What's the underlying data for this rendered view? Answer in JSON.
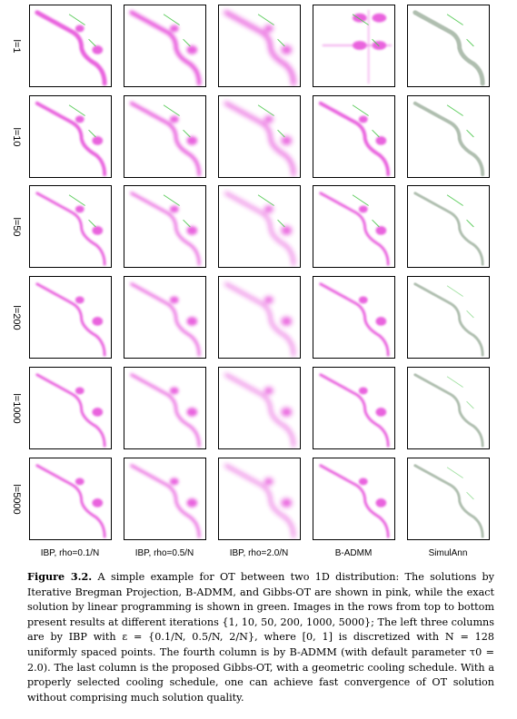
{
  "row_labels": [
    "l=1",
    "l=10",
    "l=50",
    "l=200",
    "l=1000",
    "l=5000"
  ],
  "column_labels": [
    "IBP, rho=0.1/N",
    "IBP, rho=0.5/N",
    "IBP, rho=2.0/N",
    "B-ADMM",
    "SimulAnn"
  ],
  "caption": {
    "figure_label": "Figure 3.2.",
    "text": "A simple example for OT between two 1D distribution: The solutions by Iterative Bregman Projection, B-ADMM, and Gibbs-OT are shown in pink, while the exact solution by linear programming is shown in green. Images in the rows from top to bottom present results at different iterations {1, 10, 50, 200, 1000, 5000}; The left three columns are by IBP with ε = {0.1/N, 0.5/N, 2/N}, where [0, 1] is discretized with N = 128 uniformly spaced points. The fourth column is by B-ADMM (with default parameter τ0 = 2.0). The last column is the proposed Gibbs-OT, with a geometric cooling schedule. With a properly selected cooling schedule, one can achieve fast convergence of OT solution without comprising much solution quality."
  },
  "colors": {
    "solution_pink": "#e020d0",
    "exact_green": "#4ec84e",
    "simulann_gray": "#6e8a6e"
  }
}
